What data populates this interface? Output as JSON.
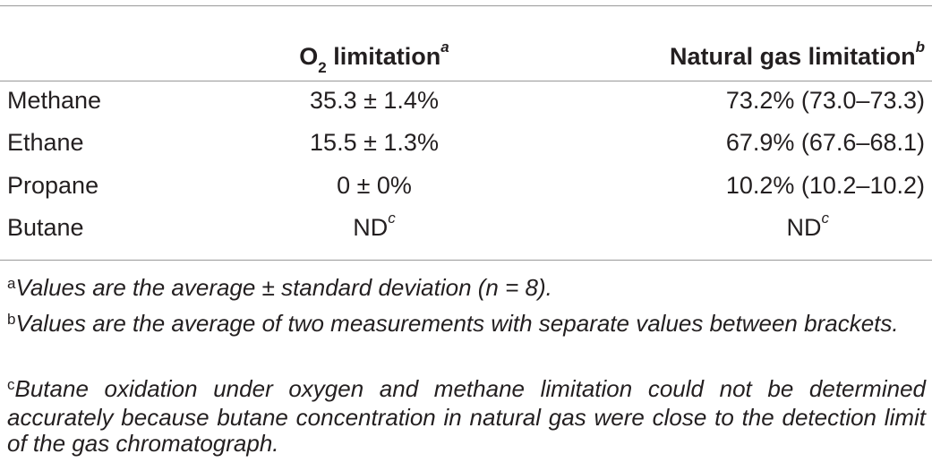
{
  "table": {
    "header": {
      "col1_prefix": "O",
      "col1_sub": "2",
      "col1_rest": " limitation",
      "col1_sup": "a",
      "col2_text": "Natural gas limitation",
      "col2_sup": "b"
    },
    "rows": [
      {
        "label": "Methane",
        "o2": "35.3 ± 1.4%",
        "ng": "73.2% (73.0–73.3)"
      },
      {
        "label": "Ethane",
        "o2": "15.5 ± 1.3%",
        "ng": "67.9% (67.6–68.1)"
      },
      {
        "label": "Propane",
        "o2": "0 ± 0%",
        "ng": "10.2% (10.2–10.2)"
      },
      {
        "label": "Butane",
        "o2": "ND",
        "o2_sup": "c",
        "ng": "ND",
        "ng_sup": "c"
      }
    ]
  },
  "footnotes": [
    {
      "mark": "a",
      "text": "Values are the average ± standard deviation (n = 8)."
    },
    {
      "mark": "b",
      "text": "Values are the average of two measurements with separate values between brackets."
    },
    {
      "mark": "c",
      "text": "Butane oxidation under oxygen and methane limitation could not be determined accurately because butane concentration in natural gas were close to the detection limit of the gas chromatograph."
    }
  ]
}
